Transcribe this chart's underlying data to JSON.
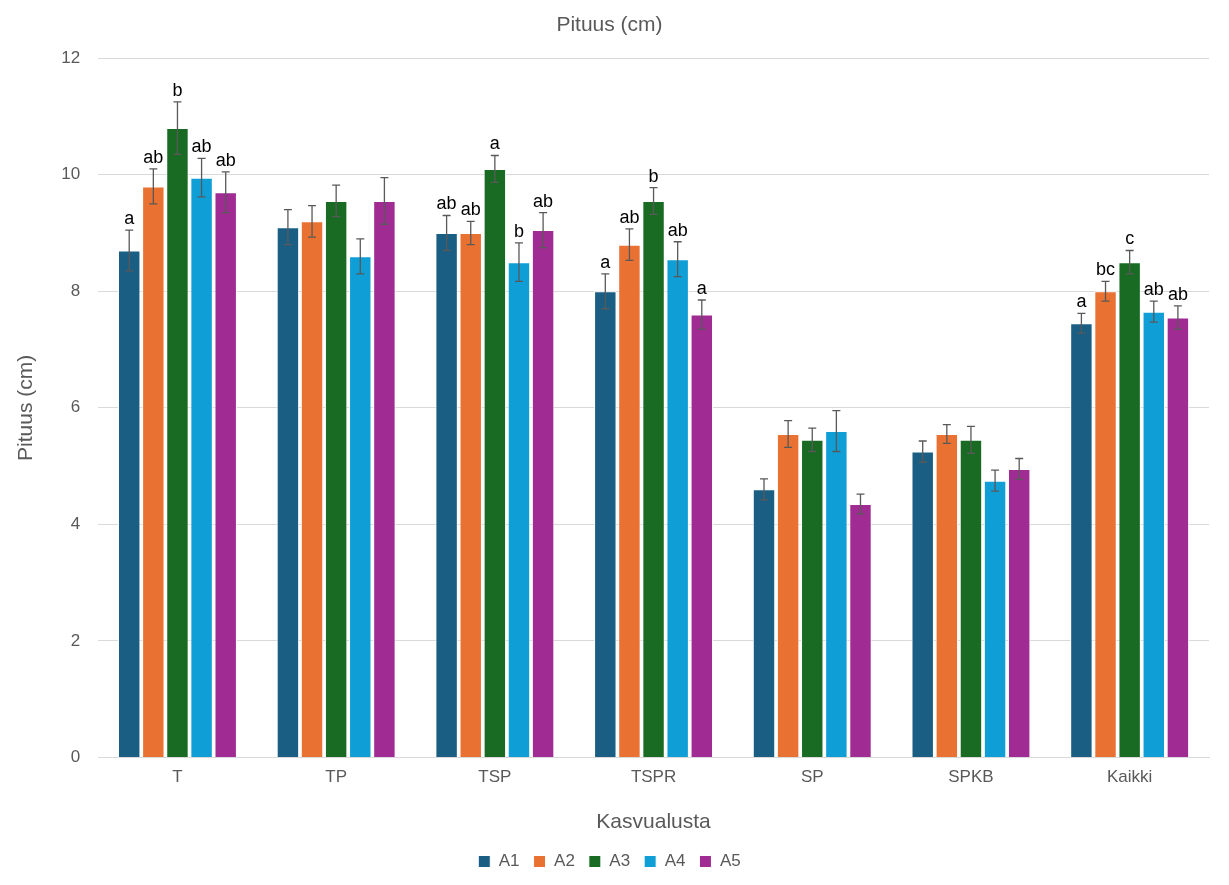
{
  "chart_data": {
    "type": "bar",
    "title": "Pituus (cm)",
    "xlabel": "Kasvualusta",
    "ylabel": "Pituus (cm)",
    "categories": [
      "T",
      "TP",
      "TSP",
      "TSPR",
      "SP",
      "SPKB",
      "Kaikki"
    ],
    "series": [
      {
        "name": "A1",
        "color": "#1a5e83",
        "values": [
          8.7,
          9.1,
          9.0,
          8.0,
          4.6,
          5.25,
          7.45
        ],
        "errors": [
          0.35,
          0.3,
          0.3,
          0.3,
          0.18,
          0.18,
          0.17
        ],
        "value_labels": [
          "a",
          null,
          "ab",
          "a",
          null,
          null,
          "a"
        ]
      },
      {
        "name": "A2",
        "color": "#e97132",
        "values": [
          9.8,
          9.2,
          9.0,
          8.8,
          5.55,
          5.55,
          8.0
        ],
        "errors": [
          0.3,
          0.27,
          0.2,
          0.27,
          0.23,
          0.16,
          0.17
        ],
        "value_labels": [
          "ab",
          null,
          "ab",
          "ab",
          null,
          null,
          "bc"
        ]
      },
      {
        "name": "A3",
        "color": "#196b24",
        "values": [
          10.8,
          9.55,
          10.1,
          9.55,
          5.45,
          5.45,
          8.5
        ],
        "errors": [
          0.45,
          0.27,
          0.23,
          0.23,
          0.2,
          0.23,
          0.2
        ],
        "value_labels": [
          "b",
          null,
          "a",
          "b",
          null,
          null,
          "c"
        ]
      },
      {
        "name": "A4",
        "color": "#0f9ed5",
        "values": [
          9.95,
          8.6,
          8.5,
          8.55,
          5.6,
          4.75,
          7.65
        ],
        "errors": [
          0.33,
          0.3,
          0.33,
          0.3,
          0.35,
          0.18,
          0.18
        ],
        "value_labels": [
          "ab",
          null,
          "b",
          "ab",
          null,
          null,
          "ab"
        ]
      },
      {
        "name": "A5",
        "color": "#a02b93",
        "values": [
          9.7,
          9.55,
          9.05,
          7.6,
          4.35,
          4.95,
          7.55
        ],
        "errors": [
          0.35,
          0.4,
          0.3,
          0.25,
          0.17,
          0.18,
          0.2
        ],
        "value_labels": [
          "ab",
          null,
          "ab",
          "a",
          null,
          null,
          "ab"
        ]
      }
    ],
    "ylim": [
      0,
      12
    ],
    "yticks": [
      0,
      2,
      4,
      6,
      8,
      10,
      12
    ],
    "grid": "y",
    "legend": "bottom"
  }
}
